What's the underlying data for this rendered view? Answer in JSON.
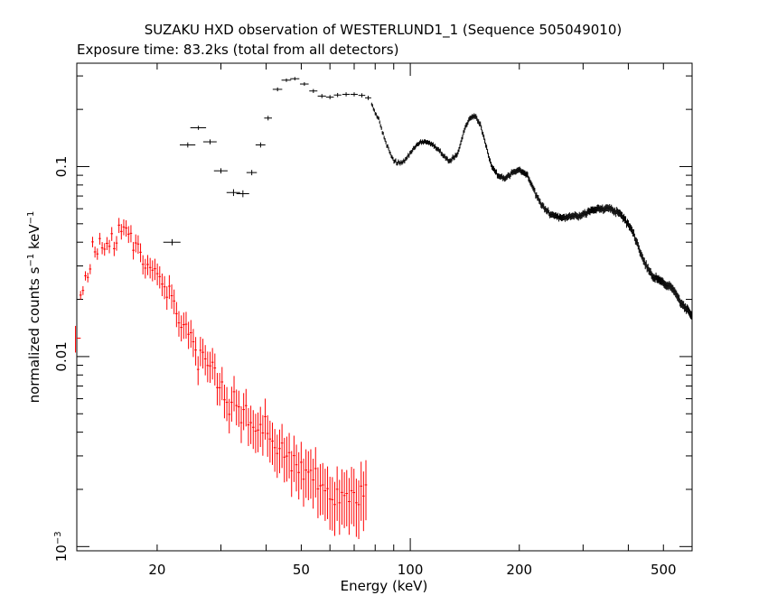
{
  "chart_data": {
    "type": "scatter",
    "title": "SUZAKU HXD observation of WESTERLUND1_1 (Sequence 505049010)",
    "subtitle": "Exposure time: 83.2ks (total from all detectors)",
    "xlabel": "Energy (keV)",
    "ylabel_parts": {
      "a": "normalized counts s",
      "a_sup": "−1",
      "b": " keV",
      "b_sup": "−1"
    },
    "xscale": "log",
    "yscale": "log",
    "xlim": [
      12,
      600
    ],
    "ylim": [
      0.00095,
      0.35
    ],
    "grid": false,
    "x_ticks": [
      {
        "value": 20,
        "label": "20"
      },
      {
        "value": 50,
        "label": "50"
      },
      {
        "value": 100,
        "label": "100"
      },
      {
        "value": 200,
        "label": "200"
      },
      {
        "value": 500,
        "label": "500"
      }
    ],
    "y_ticks": [
      {
        "value": 0.1,
        "label": "0.1"
      },
      {
        "value": 0.01,
        "label": "0.01"
      },
      {
        "value": 0.001,
        "label_base": "10",
        "label_sup": "−3"
      }
    ],
    "series": [
      {
        "color": "#ff0000",
        "generated": {
          "xmin": 12.2,
          "xmax": 76,
          "n": 120,
          "anchors": [
            [
              12.2,
              0.019
            ],
            [
              12.8,
              0.026
            ],
            [
              13.3,
              0.033
            ],
            [
              13.8,
              0.041
            ],
            [
              14.5,
              0.042
            ],
            [
              15.2,
              0.04
            ],
            [
              15.8,
              0.047
            ],
            [
              16.5,
              0.043
            ],
            [
              17.5,
              0.037
            ],
            [
              18.5,
              0.031
            ],
            [
              19.5,
              0.027
            ],
            [
              20.5,
              0.024
            ],
            [
              22,
              0.019
            ],
            [
              24,
              0.0135
            ],
            [
              26,
              0.0105
            ],
            [
              28,
              0.0085
            ],
            [
              30,
              0.007
            ],
            [
              33,
              0.0055
            ],
            [
              36,
              0.0047
            ],
            [
              40,
              0.0039
            ],
            [
              45,
              0.0031
            ],
            [
              50,
              0.0025
            ],
            [
              55,
              0.0022
            ],
            [
              60,
              0.0019
            ],
            [
              65,
              0.0018
            ],
            [
              70,
              0.0018
            ],
            [
              76,
              0.0018
            ]
          ],
          "rel_err_start": 0.05,
          "rel_err_end": 0.35,
          "scatter": 0.12
        },
        "points": [
          [
            11.9,
            0.0125,
            0.4,
            0.002
          ]
        ]
      },
      {
        "color": "#000000",
        "points": [
          [
            22.0,
            0.04,
            1.2,
            0.0015
          ],
          [
            24.3,
            0.13,
            1.2,
            0.004
          ],
          [
            26.0,
            0.16,
            1.3,
            0.004
          ],
          [
            28.0,
            0.135,
            1.2,
            0.004
          ],
          [
            30.0,
            0.095,
            1.3,
            0.003
          ],
          [
            32.5,
            0.073,
            1.4,
            0.003
          ],
          [
            34.5,
            0.072,
            1.4,
            0.003
          ],
          [
            36.5,
            0.093,
            1.2,
            0.003
          ],
          [
            38.6,
            0.13,
            1.2,
            0.004
          ],
          [
            40.5,
            0.18,
            1.0,
            0.005
          ],
          [
            43.0,
            0.255,
            1.3,
            0.006
          ],
          [
            45.5,
            0.285,
            1.4,
            0.006
          ],
          [
            48.0,
            0.29,
            1.4,
            0.006
          ],
          [
            51.0,
            0.272,
            1.4,
            0.006
          ],
          [
            54.0,
            0.25,
            1.4,
            0.006
          ],
          [
            57.0,
            0.235,
            1.5,
            0.006
          ],
          [
            60.0,
            0.232,
            1.5,
            0.006
          ],
          [
            63.0,
            0.238,
            1.5,
            0.006
          ],
          [
            66.5,
            0.24,
            1.6,
            0.006
          ],
          [
            70.0,
            0.24,
            1.6,
            0.006
          ],
          [
            73.5,
            0.237,
            1.6,
            0.006
          ],
          [
            76.5,
            0.23,
            1.5,
            0.006
          ]
        ],
        "generated": {
          "xmin": 78,
          "xmax": 600,
          "n": 360,
          "anchors": [
            [
              78,
              0.215
            ],
            [
              82,
              0.175
            ],
            [
              86,
              0.13
            ],
            [
              90,
              0.107
            ],
            [
              95,
              0.103
            ],
            [
              100,
              0.118
            ],
            [
              105,
              0.132
            ],
            [
              110,
              0.136
            ],
            [
              116,
              0.13
            ],
            [
              122,
              0.117
            ],
            [
              128,
              0.107
            ],
            [
              135,
              0.115
            ],
            [
              140,
              0.15
            ],
            [
              145,
              0.178
            ],
            [
              150,
              0.185
            ],
            [
              156,
              0.168
            ],
            [
              162,
              0.128
            ],
            [
              168,
              0.1
            ],
            [
              175,
              0.09
            ],
            [
              183,
              0.086
            ],
            [
              192,
              0.094
            ],
            [
              200,
              0.096
            ],
            [
              210,
              0.09
            ],
            [
              220,
              0.075
            ],
            [
              230,
              0.063
            ],
            [
              245,
              0.056
            ],
            [
              260,
              0.054
            ],
            [
              290,
              0.055
            ],
            [
              320,
              0.059
            ],
            [
              350,
              0.061
            ],
            [
              380,
              0.057
            ],
            [
              410,
              0.046
            ],
            [
              440,
              0.032
            ],
            [
              470,
              0.026
            ],
            [
              500,
              0.0245
            ],
            [
              530,
              0.023
            ],
            [
              560,
              0.019
            ],
            [
              600,
              0.0165
            ]
          ],
          "rel_err_start": 0.02,
          "rel_err_end": 0.05,
          "scatter": 0.015
        }
      }
    ]
  }
}
